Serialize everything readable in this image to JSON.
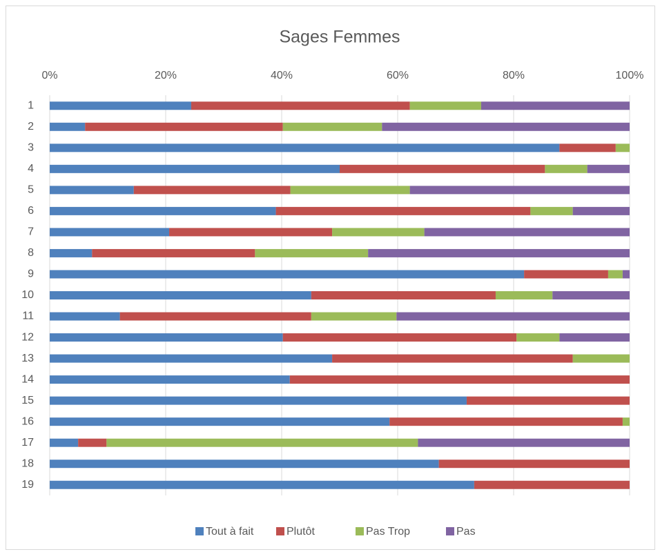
{
  "chart_data": {
    "type": "stacked_barh",
    "title": "Sages Femmes",
    "categories": [
      "1",
      "2",
      "3",
      "4",
      "5",
      "6",
      "7",
      "8",
      "9",
      "10",
      "11",
      "12",
      "13",
      "14",
      "15",
      "16",
      "17",
      "18",
      "19"
    ],
    "series": [
      {
        "name": "Tout à fait",
        "color": "#4f81bd",
        "values": [
          24.4,
          6.1,
          87.9,
          50,
          14.5,
          39,
          20.6,
          7.3,
          81.8,
          45.1,
          12.1,
          40.2,
          48.7,
          41.4,
          71.9,
          58.6,
          4.9,
          67.1,
          73.2
        ]
      },
      {
        "name": "Plutôt",
        "color": "#c0504d",
        "values": [
          37.7,
          34.1,
          9.7,
          35.4,
          27,
          43.9,
          28.1,
          28.1,
          14.5,
          31.8,
          33,
          40.3,
          41.5,
          58.6,
          28.1,
          40.2,
          4.9,
          32.9,
          26.8
        ]
      },
      {
        "name": "Pas Trop",
        "color": "#9bbb59",
        "values": [
          12.3,
          17.1,
          2.4,
          7.3,
          20.6,
          7.3,
          15.9,
          19.5,
          2.5,
          9.8,
          14.7,
          7.4,
          9.8,
          0,
          0,
          1.2,
          53.7,
          0,
          0
        ]
      },
      {
        "name": "Pas",
        "color": "#8064a2",
        "values": [
          25.6,
          42.7,
          0,
          7.3,
          37.9,
          9.8,
          35.4,
          45.1,
          1.2,
          13.3,
          40.2,
          12.1,
          0,
          0,
          0,
          0,
          36.5,
          0,
          0
        ]
      }
    ],
    "xlim": [
      0,
      100
    ],
    "xticks": [
      {
        "value": 0,
        "label": "0%"
      },
      {
        "value": 20,
        "label": "20%"
      },
      {
        "value": 40,
        "label": "40%"
      },
      {
        "value": 60,
        "label": "60%"
      },
      {
        "value": 80,
        "label": "80%"
      },
      {
        "value": 100,
        "label": "100%"
      }
    ],
    "grid": true,
    "legend": "bottom"
  }
}
